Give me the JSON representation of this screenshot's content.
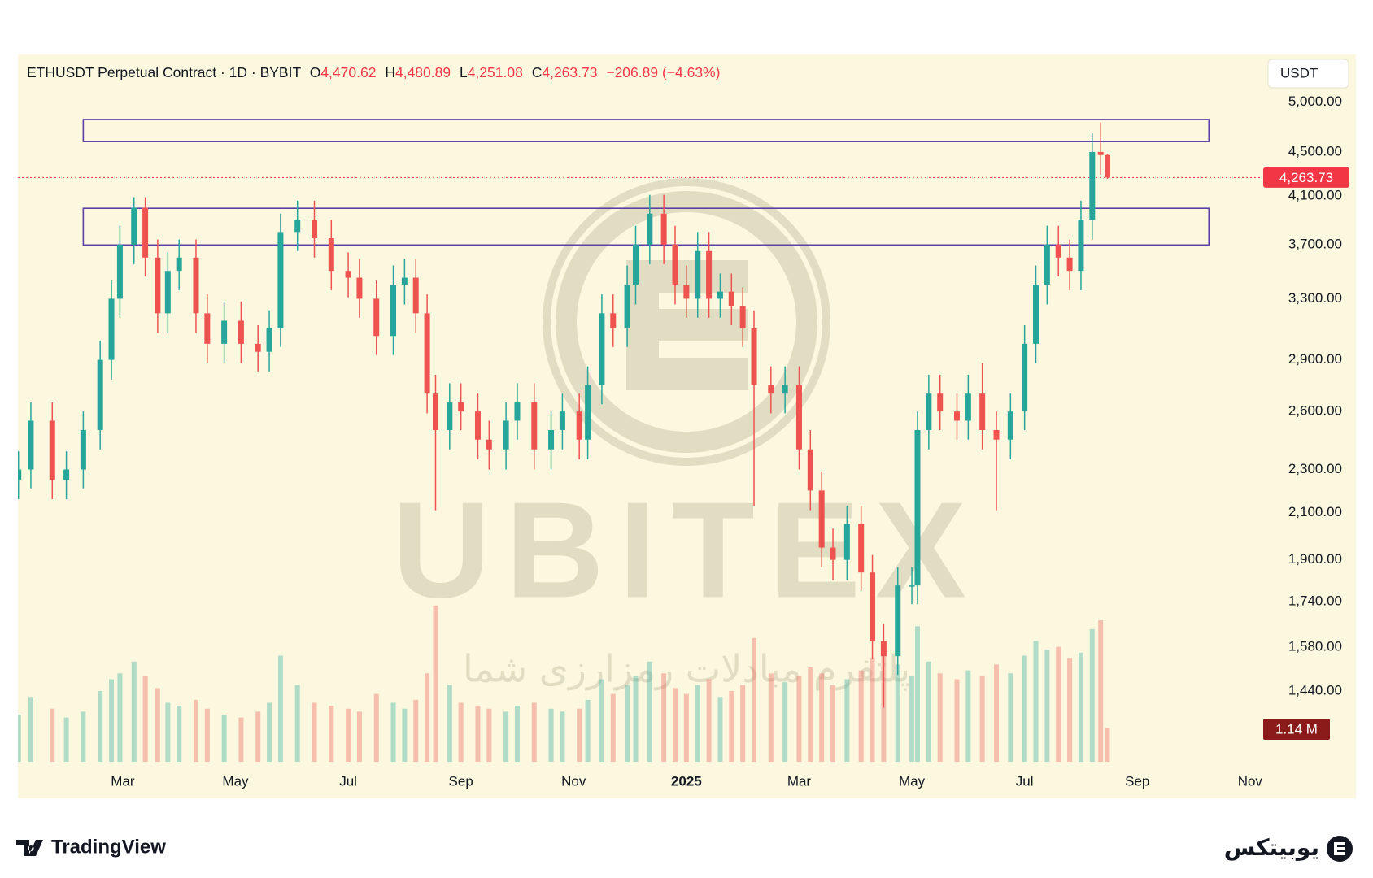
{
  "chart_data": {
    "type": "candlestick",
    "header": {
      "symbol": "ETHUSDT Perpetual Contract · 1D · BYBIT",
      "open_tag": "O",
      "open": "4,470.62",
      "high_tag": "H",
      "high": "4,480.89",
      "low_tag": "L",
      "low": "4,251.08",
      "close_tag": "C",
      "close": "4,263.73",
      "change": "−206.89 (−4.63%)"
    },
    "currency": "USDT",
    "log_scale": true,
    "up_color": "#26a69a",
    "down_color": "#ef5350",
    "zone_color": "#5b3fa6",
    "xlim": [
      0.14,
      22.19
    ],
    "xticks": [
      {
        "value": 2,
        "label": "Mar"
      },
      {
        "value": 4,
        "label": "May"
      },
      {
        "value": 6,
        "label": "Jul"
      },
      {
        "value": 8,
        "label": "Sep"
      },
      {
        "value": 10,
        "label": "Nov"
      },
      {
        "value": 12,
        "label": "2025"
      },
      {
        "value": 14,
        "label": "Mar"
      },
      {
        "value": 16,
        "label": "May"
      },
      {
        "value": 18,
        "label": "Jul"
      },
      {
        "value": 20,
        "label": "Sep"
      },
      {
        "value": 22,
        "label": "Nov"
      }
    ],
    "ylim": [
      1240,
      5530
    ],
    "yticks": [
      {
        "value": 5000,
        "label": "5,000.00"
      },
      {
        "value": 4500,
        "label": "4,500.00"
      },
      {
        "value": 4100,
        "label": "4,100.00"
      },
      {
        "value": 3700,
        "label": "3,700.00"
      },
      {
        "value": 3300,
        "label": "3,300.00"
      },
      {
        "value": 2900,
        "label": "2,900.00"
      },
      {
        "value": 2600,
        "label": "2,600.00"
      },
      {
        "value": 2300,
        "label": "2,300.00"
      },
      {
        "value": 2100,
        "label": "2,100.00"
      },
      {
        "value": 1900,
        "label": "1,900.00"
      },
      {
        "value": 1740,
        "label": "1,740.00"
      },
      {
        "value": 1580,
        "label": "1,580.00"
      },
      {
        "value": 1440,
        "label": "1,440.00"
      }
    ],
    "x": [
      0.15,
      0.37,
      0.75,
      1.0,
      1.3,
      1.6,
      1.8,
      1.95,
      2.2,
      2.4,
      2.62,
      2.8,
      3.0,
      3.3,
      3.5,
      3.8,
      4.1,
      4.4,
      4.6,
      4.8,
      5.1,
      5.4,
      5.7,
      6.0,
      6.2,
      6.5,
      6.8,
      7.0,
      7.2,
      7.4,
      7.55,
      7.8,
      8.0,
      8.3,
      8.5,
      8.8,
      9.0,
      9.3,
      9.6,
      9.8,
      10.1,
      10.25,
      10.5,
      10.7,
      10.95,
      11.1,
      11.35,
      11.6,
      11.8,
      12.0,
      12.2,
      12.4,
      12.6,
      12.8,
      13.0,
      13.2,
      13.5,
      13.75,
      14.0,
      14.2,
      14.4,
      14.6,
      14.85,
      15.1,
      15.3,
      15.5,
      15.75,
      16.0,
      16.1,
      16.3,
      16.5,
      16.8,
      17.0,
      17.25,
      17.5,
      17.75,
      18.0,
      18.2,
      18.4,
      18.6,
      18.8,
      19.0,
      19.2,
      19.35,
      19.47
    ],
    "open": [
      2250,
      2300,
      2550,
      2250,
      2300,
      2500,
      2900,
      3300,
      3700,
      4000,
      3600,
      3200,
      3500,
      3600,
      3200,
      3000,
      3150,
      3000,
      2950,
      3100,
      3800,
      3900,
      3750,
      3500,
      3450,
      3300,
      3050,
      3400,
      3450,
      3200,
      2700,
      2500,
      2650,
      2600,
      2450,
      2400,
      2550,
      2650,
      2400,
      2500,
      2600,
      2450,
      2750,
      3200,
      3100,
      3400,
      3700,
      3950,
      3700,
      3400,
      3300,
      3650,
      3300,
      3350,
      3250,
      3100,
      2750,
      2700,
      2750,
      2400,
      2200,
      1950,
      1900,
      2050,
      1850,
      1600,
      1550,
      1800,
      1800,
      2500,
      2700,
      2600,
      2550,
      2700,
      2500,
      2450,
      2600,
      3000,
      3400,
      3700,
      3600,
      3500,
      3900,
      4500,
      4470.62
    ],
    "high": [
      2390,
      2650,
      2650,
      2390,
      2600,
      3020,
      3430,
      3850,
      4090,
      4090,
      3740,
      3640,
      3740,
      3740,
      3330,
      3280,
      3280,
      3120,
      3220,
      3950,
      4060,
      4060,
      3900,
      3640,
      3590,
      3430,
      3540,
      3590,
      3590,
      3330,
      2810,
      2760,
      2760,
      2700,
      2550,
      2650,
      2760,
      2760,
      2600,
      2700,
      2700,
      2860,
      3330,
      3330,
      3540,
      3850,
      4110,
      4110,
      3850,
      3540,
      3800,
      3800,
      3480,
      3480,
      3380,
      3220,
      2860,
      2860,
      2860,
      2500,
      2290,
      2030,
      2130,
      2130,
      1920,
      1660,
      1870,
      1870,
      2600,
      2810,
      2810,
      2700,
      2810,
      2880,
      2600,
      2700,
      3120,
      3540,
      3850,
      3850,
      3740,
      4060,
      4680,
      4790,
      4480.89
    ],
    "low": [
      2160,
      2210,
      2160,
      2160,
      2210,
      2400,
      2780,
      3170,
      3550,
      3460,
      3070,
      3070,
      3360,
      3070,
      2880,
      2880,
      2880,
      2830,
      2830,
      2980,
      3650,
      3600,
      3360,
      3310,
      3170,
      2930,
      2930,
      3260,
      3070,
      2590,
      2110,
      2400,
      2500,
      2350,
      2300,
      2300,
      2450,
      2300,
      2300,
      2400,
      2350,
      2350,
      2640,
      2980,
      2980,
      3260,
      3550,
      3550,
      3260,
      3170,
      3170,
      3170,
      3170,
      3120,
      2980,
      2130,
      2590,
      2590,
      2300,
      2110,
      1870,
      1820,
      1820,
      1780,
      1540,
      1390,
      1490,
      1730,
      1730,
      2400,
      2500,
      2450,
      2450,
      2400,
      2110,
      2350,
      2500,
      2880,
      3260,
      3460,
      3360,
      3360,
      3740,
      4290,
      4251.08
    ],
    "close": [
      2300,
      2550,
      2250,
      2300,
      2500,
      2900,
      3300,
      3700,
      4000,
      3600,
      3200,
      3500,
      3600,
      3200,
      3000,
      3150,
      3000,
      2950,
      3100,
      3800,
      3900,
      3750,
      3500,
      3450,
      3300,
      3050,
      3400,
      3450,
      3200,
      2700,
      2500,
      2650,
      2600,
      2450,
      2400,
      2550,
      2650,
      2400,
      2500,
      2600,
      2450,
      2750,
      3200,
      3100,
      3400,
      3700,
      3950,
      3700,
      3400,
      3300,
      3650,
      3300,
      3350,
      3250,
      3100,
      2750,
      2700,
      2750,
      2400,
      2200,
      1950,
      1900,
      2050,
      1850,
      1600,
      1550,
      1800,
      1800,
      2500,
      2700,
      2600,
      2550,
      2700,
      2500,
      2450,
      2600,
      3000,
      3400,
      3700,
      3600,
      3500,
      3900,
      4500,
      4470.62,
      4263.73
    ],
    "volume": [
      1.6,
      2.2,
      1.8,
      1.5,
      1.7,
      2.4,
      2.8,
      3.0,
      3.4,
      2.9,
      2.5,
      2.0,
      1.9,
      2.1,
      1.8,
      1.6,
      1.5,
      1.7,
      2.0,
      3.6,
      2.6,
      2.0,
      1.9,
      1.8,
      1.7,
      2.3,
      2.0,
      1.8,
      2.1,
      3.0,
      5.3,
      2.6,
      2.0,
      1.9,
      1.8,
      1.7,
      1.9,
      2.0,
      1.8,
      1.7,
      1.8,
      2.1,
      2.8,
      2.3,
      2.6,
      2.9,
      3.4,
      3.0,
      2.5,
      2.3,
      2.6,
      2.8,
      2.2,
      2.4,
      2.6,
      4.2,
      3.0,
      2.7,
      2.9,
      3.2,
      3.0,
      2.6,
      2.8,
      3.1,
      3.5,
      4.0,
      3.3,
      2.9,
      4.6,
      3.4,
      3.0,
      2.8,
      3.1,
      2.9,
      3.3,
      3.0,
      3.6,
      4.1,
      3.8,
      3.9,
      3.5,
      3.7,
      4.5,
      4.8,
      1.14
    ],
    "volume_lim": [
      0,
      24
    ],
    "volume_label": "1.14 M",
    "last_price": 4263.73,
    "last_price_label": "4,263.73",
    "zones": [
      {
        "x_start": 1.3,
        "x_end": 21.27,
        "low": 4600,
        "high": 4820
      },
      {
        "x_start": 1.3,
        "x_end": 21.27,
        "low": 3697,
        "high": 3995
      }
    ],
    "watermark": {
      "brand": "UBITEX",
      "tagline": "پلتفرم مبادلات رمزارزی شما"
    },
    "footer": {
      "left": "TradingView",
      "right": "یوبیتکس"
    }
  }
}
